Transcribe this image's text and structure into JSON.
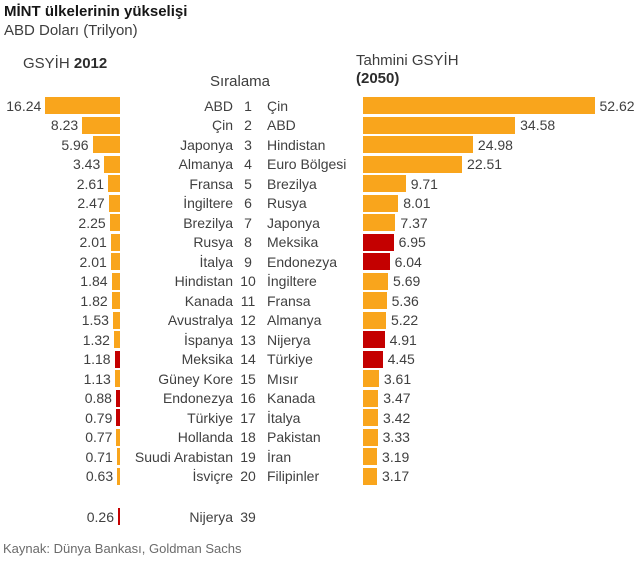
{
  "title": "MİNT ülkelerinin yükselişi",
  "subtitle": "ABD Doları (Trilyon)",
  "headers": {
    "left_prefix": "GSYİH ",
    "left_year": "2012",
    "middle": "Sıralama",
    "right_line1": "Tahmini GSYİH",
    "right_line2": "(2050)"
  },
  "footer": "Kaynak: Dünya Bankası, Goldman Sachs",
  "colors": {
    "orange": "#F9A51C",
    "red": "#C40000",
    "text": "#404040"
  },
  "chart_data": {
    "type": "bar",
    "orientation": "horizontal",
    "title": "MİNT ülkelerinin yükselişi",
    "unit": "ABD Doları (Trilyon)",
    "left_series_name": "GSYİH 2012",
    "right_series_name": "Tahmini GSYİH (2050)",
    "middle_axis_label": "Sıralama",
    "highlight_color_meaning": "MINT ülkeleri (kırmızı)",
    "rows": [
      {
        "left_value": 16.24,
        "left_country": "ABD",
        "left_highlight": false,
        "rank": 1,
        "right_country": "Çin",
        "right_value": 52.62,
        "right_highlight": false
      },
      {
        "left_value": 8.23,
        "left_country": "Çin",
        "left_highlight": false,
        "rank": 2,
        "right_country": "ABD",
        "right_value": 34.58,
        "right_highlight": false
      },
      {
        "left_value": 5.96,
        "left_country": "Japonya",
        "left_highlight": false,
        "rank": 3,
        "right_country": "Hindistan",
        "right_value": 24.98,
        "right_highlight": false
      },
      {
        "left_value": 3.43,
        "left_country": "Almanya",
        "left_highlight": false,
        "rank": 4,
        "right_country": "Euro Bölgesi",
        "right_value": 22.51,
        "right_highlight": false
      },
      {
        "left_value": 2.61,
        "left_country": "Fransa",
        "left_highlight": false,
        "rank": 5,
        "right_country": "Brezilya",
        "right_value": 9.71,
        "right_highlight": false
      },
      {
        "left_value": 2.47,
        "left_country": "İngiltere",
        "left_highlight": false,
        "rank": 6,
        "right_country": "Rusya",
        "right_value": 8.01,
        "right_highlight": false
      },
      {
        "left_value": 2.25,
        "left_country": "Brezilya",
        "left_highlight": false,
        "rank": 7,
        "right_country": "Japonya",
        "right_value": 7.37,
        "right_highlight": false
      },
      {
        "left_value": 2.01,
        "left_country": "Rusya",
        "left_highlight": false,
        "rank": 8,
        "right_country": "Meksika",
        "right_value": 6.95,
        "right_highlight": true
      },
      {
        "left_value": 2.01,
        "left_country": "İtalya",
        "left_highlight": false,
        "rank": 9,
        "right_country": "Endonezya",
        "right_value": 6.04,
        "right_highlight": true
      },
      {
        "left_value": 1.84,
        "left_country": "Hindistan",
        "left_highlight": false,
        "rank": 10,
        "right_country": "İngiltere",
        "right_value": 5.69,
        "right_highlight": false
      },
      {
        "left_value": 1.82,
        "left_country": "Kanada",
        "left_highlight": false,
        "rank": 11,
        "right_country": "Fransa",
        "right_value": 5.36,
        "right_highlight": false
      },
      {
        "left_value": 1.53,
        "left_country": "Avustralya",
        "left_highlight": false,
        "rank": 12,
        "right_country": "Almanya",
        "right_value": 5.22,
        "right_highlight": false
      },
      {
        "left_value": 1.32,
        "left_country": "İspanya",
        "left_highlight": false,
        "rank": 13,
        "right_country": "Nijerya",
        "right_value": 4.91,
        "right_highlight": true
      },
      {
        "left_value": 1.18,
        "left_country": "Meksika",
        "left_highlight": true,
        "rank": 14,
        "right_country": "Türkiye",
        "right_value": 4.45,
        "right_highlight": true
      },
      {
        "left_value": 1.13,
        "left_country": "Güney Kore",
        "left_highlight": false,
        "rank": 15,
        "right_country": "Mısır",
        "right_value": 3.61,
        "right_highlight": false
      },
      {
        "left_value": 0.88,
        "left_country": "Endonezya",
        "left_highlight": true,
        "rank": 16,
        "right_country": "Kanada",
        "right_value": 3.47,
        "right_highlight": false
      },
      {
        "left_value": 0.79,
        "left_country": "Türkiye",
        "left_highlight": true,
        "rank": 17,
        "right_country": "İtalya",
        "right_value": 3.42,
        "right_highlight": false
      },
      {
        "left_value": 0.77,
        "left_country": "Hollanda",
        "left_highlight": false,
        "rank": 18,
        "right_country": "Pakistan",
        "right_value": 3.33,
        "right_highlight": false
      },
      {
        "left_value": 0.71,
        "left_country": "Suudi Arabistan",
        "left_highlight": false,
        "rank": 19,
        "right_country": "İran",
        "right_value": 3.19,
        "right_highlight": false
      },
      {
        "left_value": 0.63,
        "left_country": "İsviçre",
        "left_highlight": false,
        "rank": 20,
        "right_country": "Filipinler",
        "right_value": 3.17,
        "right_highlight": false
      }
    ],
    "extra_row": {
      "left_value": 0.26,
      "country": "Nijerya",
      "rank": 39,
      "left_highlight": true
    }
  }
}
